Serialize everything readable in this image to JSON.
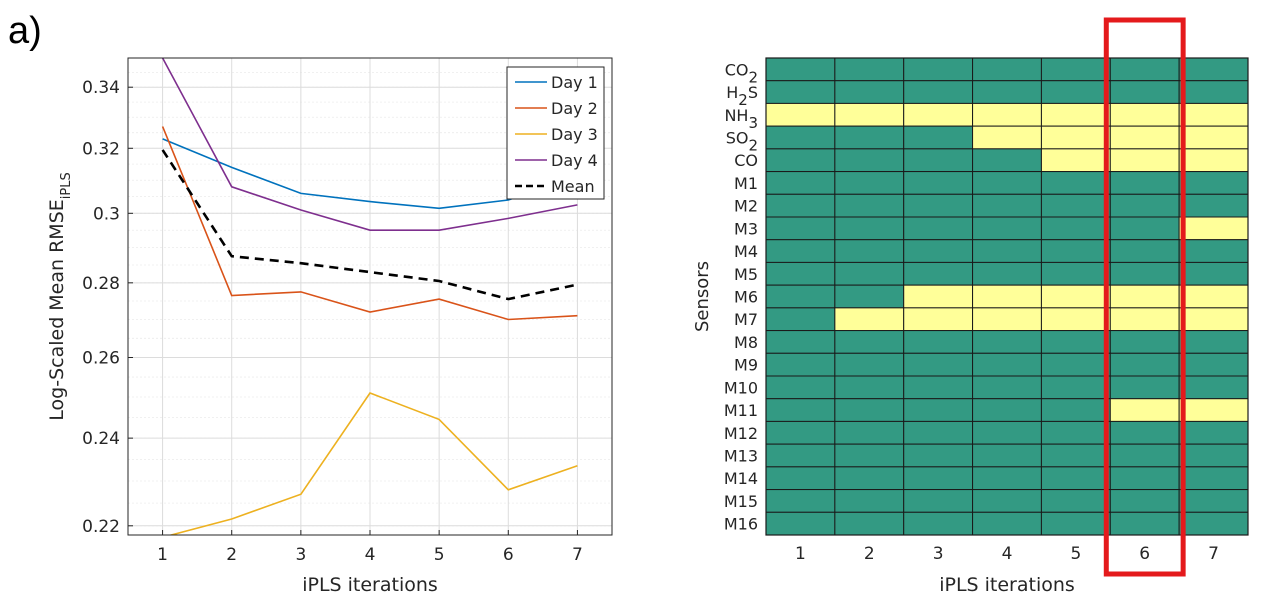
{
  "panel_label": "a)",
  "colors": {
    "day1": "#0072BD",
    "day2": "#D95319",
    "day3": "#EDB120",
    "day4": "#7E2F8E",
    "mean": "#000000",
    "selected": "#339A83",
    "not_selected": "#FFFF99",
    "highlight": "#E41A1C"
  },
  "chart_data": [
    {
      "type": "line",
      "xlabel": "iPLS iterations",
      "ylabel_main": "Log-Scaled Mean RMSE",
      "ylabel_sub": "iPLS",
      "yscale": "log",
      "ylim": [
        0.218,
        0.35
      ],
      "xlim": [
        0.5,
        7.5
      ],
      "grid": true,
      "legend_position": "top-right",
      "x": [
        1,
        2,
        3,
        4,
        5,
        6,
        7
      ],
      "ytick_labels": [
        "0.22",
        "0.24",
        "0.26",
        "0.28",
        "0.3",
        "0.32",
        "0.34"
      ],
      "ytick_values": [
        0.22,
        0.24,
        0.26,
        0.28,
        0.3,
        0.32,
        0.34
      ],
      "series": [
        {
          "name": "Day 1",
          "values": [
            0.323,
            0.314,
            0.306,
            0.3035,
            0.3015,
            0.304,
            0.311
          ],
          "style": "solid",
          "color": "#0072BD"
        },
        {
          "name": "Day 2",
          "values": [
            0.327,
            0.2765,
            0.2775,
            0.272,
            0.2755,
            0.27,
            0.271
          ],
          "style": "solid",
          "color": "#D95319"
        },
        {
          "name": "Day 3",
          "values": [
            0.2175,
            0.2215,
            0.227,
            0.251,
            0.2445,
            0.228,
            0.2335
          ],
          "style": "solid",
          "color": "#EDB120"
        },
        {
          "name": "Day 4",
          "values": [
            0.35,
            0.308,
            0.301,
            0.295,
            0.295,
            0.2985,
            0.3025
          ],
          "style": "solid",
          "color": "#7E2F8E"
        },
        {
          "name": "Mean",
          "values": [
            0.3195,
            0.2875,
            0.2855,
            0.283,
            0.2805,
            0.2755,
            0.2795
          ],
          "style": "dashed",
          "color": "#000000"
        }
      ]
    },
    {
      "type": "heatmap",
      "xlabel": "iPLS iterations",
      "ylabel": "Sensors",
      "x_categories": [
        "1",
        "2",
        "3",
        "4",
        "5",
        "6",
        "7"
      ],
      "y_categories": [
        {
          "base": "CO",
          "sub": "2"
        },
        {
          "base": "H",
          "sub": "2",
          "tail": "S"
        },
        {
          "base": "NH",
          "sub": "3"
        },
        {
          "base": "SO",
          "sub": "2"
        },
        {
          "base": "CO"
        },
        {
          "base": "M1"
        },
        {
          "base": "M2"
        },
        {
          "base": "M3"
        },
        {
          "base": "M4"
        },
        {
          "base": "M5"
        },
        {
          "base": "M6"
        },
        {
          "base": "M7"
        },
        {
          "base": "M8"
        },
        {
          "base": "M9"
        },
        {
          "base": "M10"
        },
        {
          "base": "M11"
        },
        {
          "base": "M12"
        },
        {
          "base": "M13"
        },
        {
          "base": "M14"
        },
        {
          "base": "M15"
        },
        {
          "base": "M16"
        }
      ],
      "values": [
        [
          1,
          1,
          1,
          1,
          1,
          1,
          1
        ],
        [
          1,
          1,
          1,
          1,
          1,
          1,
          1
        ],
        [
          0,
          0,
          0,
          0,
          0,
          0,
          0
        ],
        [
          1,
          1,
          1,
          0,
          0,
          0,
          0
        ],
        [
          1,
          1,
          1,
          1,
          0,
          0,
          0
        ],
        [
          1,
          1,
          1,
          1,
          1,
          1,
          1
        ],
        [
          1,
          1,
          1,
          1,
          1,
          1,
          1
        ],
        [
          1,
          1,
          1,
          1,
          1,
          1,
          0
        ],
        [
          1,
          1,
          1,
          1,
          1,
          1,
          1
        ],
        [
          1,
          1,
          1,
          1,
          1,
          1,
          1
        ],
        [
          1,
          1,
          0,
          0,
          0,
          0,
          0
        ],
        [
          1,
          0,
          0,
          0,
          0,
          0,
          0
        ],
        [
          1,
          1,
          1,
          1,
          1,
          1,
          1
        ],
        [
          1,
          1,
          1,
          1,
          1,
          1,
          1
        ],
        [
          1,
          1,
          1,
          1,
          1,
          1,
          1
        ],
        [
          1,
          1,
          1,
          1,
          1,
          0,
          0
        ],
        [
          1,
          1,
          1,
          1,
          1,
          1,
          1
        ],
        [
          1,
          1,
          1,
          1,
          1,
          1,
          1
        ],
        [
          1,
          1,
          1,
          1,
          1,
          1,
          1
        ],
        [
          1,
          1,
          1,
          1,
          1,
          1,
          1
        ],
        [
          1,
          1,
          1,
          1,
          1,
          1,
          1
        ]
      ],
      "highlighted_column": "6"
    }
  ]
}
